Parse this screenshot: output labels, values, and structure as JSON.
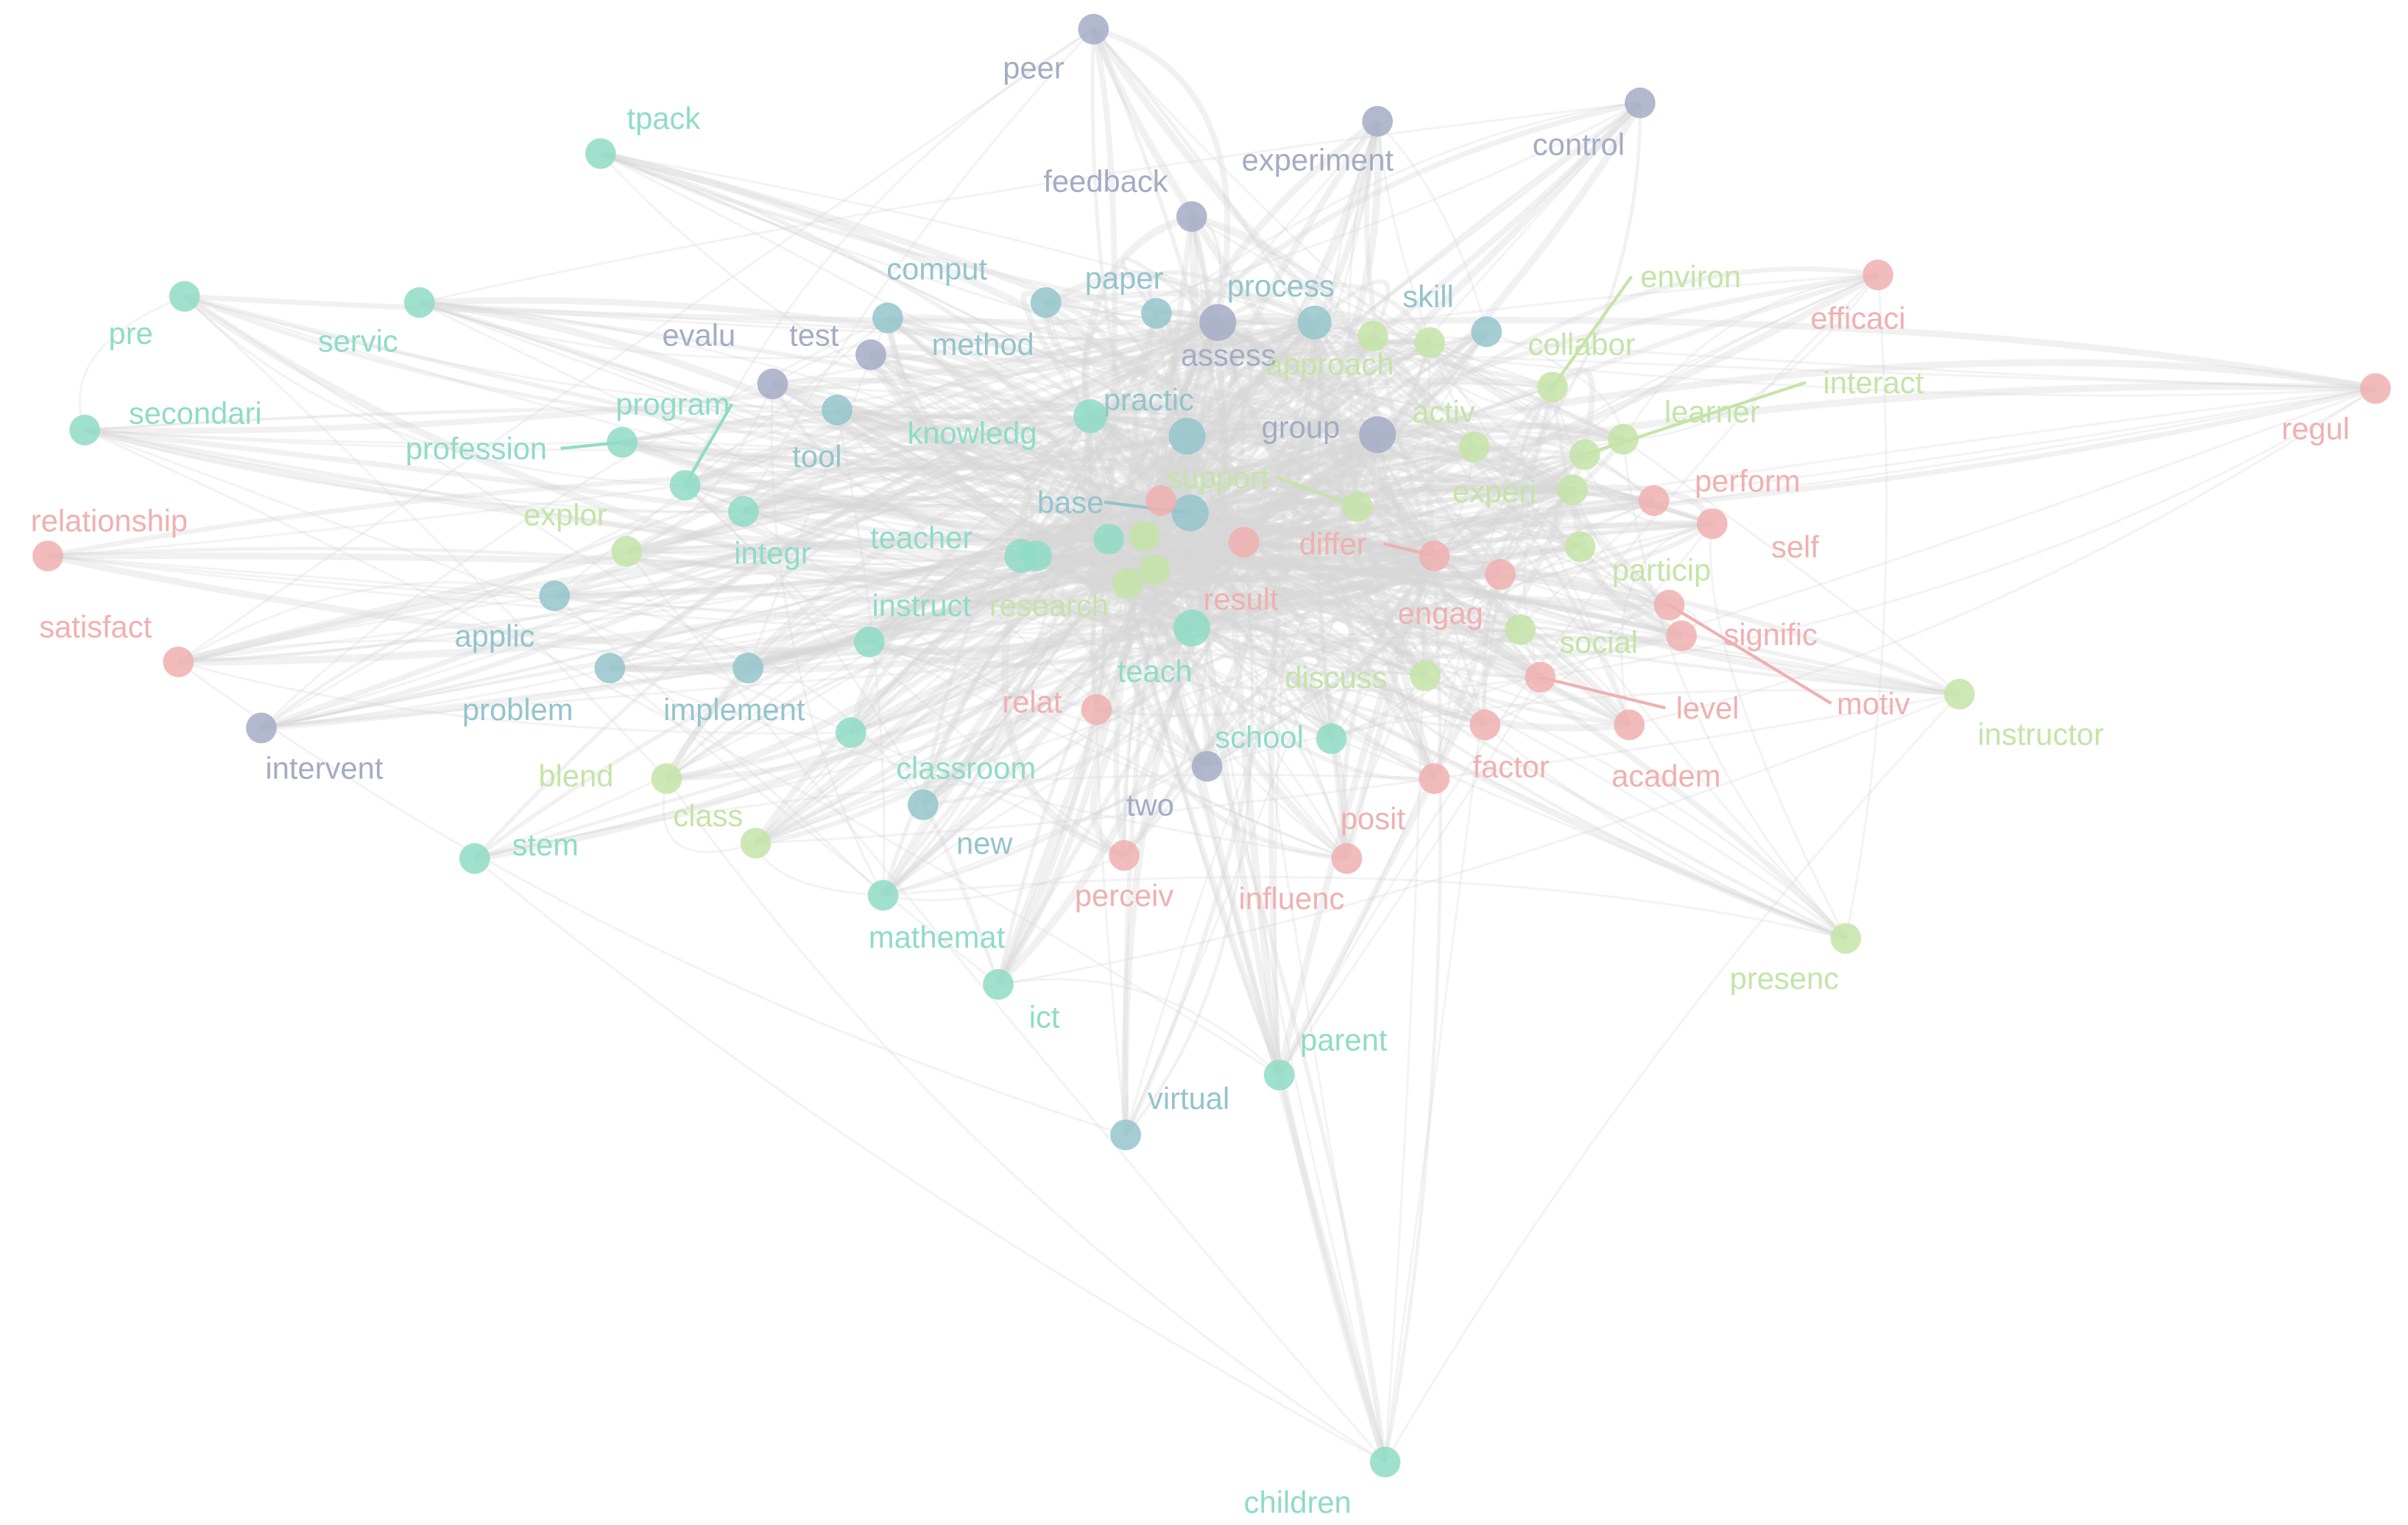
{
  "colors": {
    "mint": "#8fdcc6",
    "teal": "#94c4cc",
    "slate": "#a4acc4",
    "green": "#c4e4a8",
    "pink": "#f0b0b0",
    "edge": "#d8d8d8"
  },
  "nodes": [
    {
      "label": "tpack",
      "cluster": "mint"
    },
    {
      "label": "pre",
      "cluster": "mint"
    },
    {
      "label": "servic",
      "cluster": "mint"
    },
    {
      "label": "secondari",
      "cluster": "mint"
    },
    {
      "label": "profession",
      "cluster": "mint"
    },
    {
      "label": "program",
      "cluster": "mint"
    },
    {
      "label": "integr",
      "cluster": "mint"
    },
    {
      "label": "teacher",
      "cluster": "mint"
    },
    {
      "label": "instruct",
      "cluster": "mint"
    },
    {
      "label": "classroom",
      "cluster": "mint"
    },
    {
      "label": "mathemat",
      "cluster": "mint"
    },
    {
      "label": "ict",
      "cluster": "mint"
    },
    {
      "label": "stem",
      "cluster": "mint"
    },
    {
      "label": "knowledg",
      "cluster": "mint"
    },
    {
      "label": "teach",
      "cluster": "mint"
    },
    {
      "label": "school",
      "cluster": "mint"
    },
    {
      "label": "parent",
      "cluster": "mint"
    },
    {
      "label": "children",
      "cluster": "mint"
    },
    {
      "label": "comput",
      "cluster": "teal"
    },
    {
      "label": "paper",
      "cluster": "teal"
    },
    {
      "label": "process",
      "cluster": "teal"
    },
    {
      "label": "skill",
      "cluster": "teal"
    },
    {
      "label": "method",
      "cluster": "teal"
    },
    {
      "label": "tool",
      "cluster": "teal"
    },
    {
      "label": "practic",
      "cluster": "teal"
    },
    {
      "label": "base",
      "cluster": "teal"
    },
    {
      "label": "applic",
      "cluster": "teal"
    },
    {
      "label": "problem",
      "cluster": "teal"
    },
    {
      "label": "implement",
      "cluster": "teal"
    },
    {
      "label": "new",
      "cluster": "teal"
    },
    {
      "label": "virtual",
      "cluster": "teal"
    },
    {
      "label": "peer",
      "cluster": "slate"
    },
    {
      "label": "experiment",
      "cluster": "slate"
    },
    {
      "label": "control",
      "cluster": "slate"
    },
    {
      "label": "feedback",
      "cluster": "slate"
    },
    {
      "label": "evalu",
      "cluster": "slate"
    },
    {
      "label": "test",
      "cluster": "slate"
    },
    {
      "label": "assess",
      "cluster": "slate"
    },
    {
      "label": "group",
      "cluster": "slate"
    },
    {
      "label": "intervent",
      "cluster": "slate"
    },
    {
      "label": "two",
      "cluster": "slate"
    },
    {
      "label": "environ",
      "cluster": "green"
    },
    {
      "label": "approach",
      "cluster": "green"
    },
    {
      "label": "collabor",
      "cluster": "green"
    },
    {
      "label": "interact",
      "cluster": "green"
    },
    {
      "label": "learner",
      "cluster": "green"
    },
    {
      "label": "activ",
      "cluster": "green"
    },
    {
      "label": "experi",
      "cluster": "green"
    },
    {
      "label": "support",
      "cluster": "green"
    },
    {
      "label": "particip",
      "cluster": "green"
    },
    {
      "label": "social",
      "cluster": "green"
    },
    {
      "label": "discuss",
      "cluster": "green"
    },
    {
      "label": "explor",
      "cluster": "green"
    },
    {
      "label": "blend",
      "cluster": "green"
    },
    {
      "label": "class",
      "cluster": "green"
    },
    {
      "label": "research",
      "cluster": "green"
    },
    {
      "label": "instructor",
      "cluster": "green"
    },
    {
      "label": "presenc",
      "cluster": "green"
    },
    {
      "label": "efficaci",
      "cluster": "pink"
    },
    {
      "label": "regul",
      "cluster": "pink"
    },
    {
      "label": "relationship",
      "cluster": "pink"
    },
    {
      "label": "satisfact",
      "cluster": "pink"
    },
    {
      "label": "perform",
      "cluster": "pink"
    },
    {
      "label": "self",
      "cluster": "pink"
    },
    {
      "label": "differ",
      "cluster": "pink"
    },
    {
      "label": "result",
      "cluster": "pink"
    },
    {
      "label": "engag",
      "cluster": "pink"
    },
    {
      "label": "signific",
      "cluster": "pink"
    },
    {
      "label": "motiv",
      "cluster": "pink"
    },
    {
      "label": "level",
      "cluster": "pink"
    },
    {
      "label": "factor",
      "cluster": "pink"
    },
    {
      "label": "academ",
      "cluster": "pink"
    },
    {
      "label": "posit",
      "cluster": "pink"
    },
    {
      "label": "influenc",
      "cluster": "pink"
    },
    {
      "label": "perceiv",
      "cluster": "pink"
    },
    {
      "label": "relat",
      "cluster": "pink"
    },
    {
      "label": "",
      "cluster": "mint"
    },
    {
      "label": "",
      "cluster": "green"
    },
    {
      "label": "",
      "cluster": "green"
    },
    {
      "label": "",
      "cluster": "pink"
    },
    {
      "label": "",
      "cluster": "mint"
    }
  ]
}
